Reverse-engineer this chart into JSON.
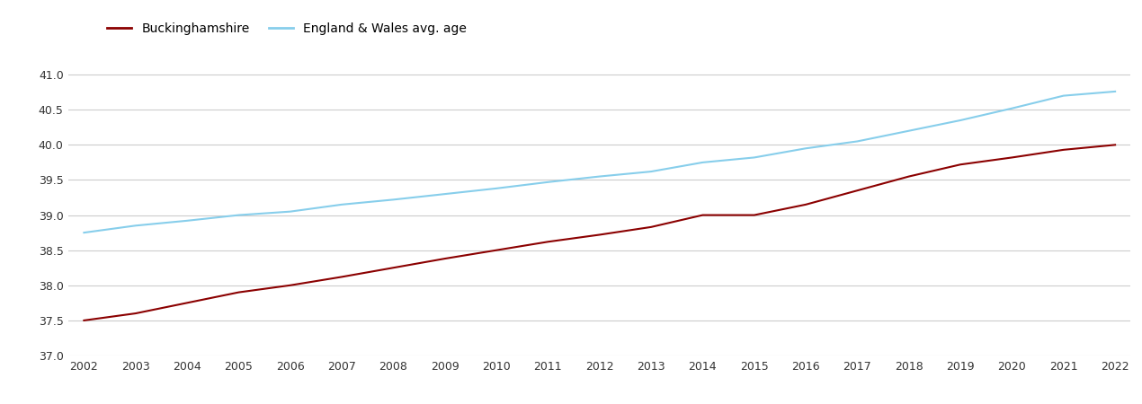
{
  "years": [
    2002,
    2003,
    2004,
    2005,
    2006,
    2007,
    2008,
    2009,
    2010,
    2011,
    2012,
    2013,
    2014,
    2015,
    2016,
    2017,
    2018,
    2019,
    2020,
    2021,
    2022
  ],
  "buckinghamshire": [
    37.5,
    37.6,
    37.75,
    37.9,
    38.0,
    38.12,
    38.25,
    38.38,
    38.5,
    38.62,
    38.72,
    38.83,
    39.0,
    39.0,
    39.15,
    39.35,
    39.55,
    39.72,
    39.82,
    39.93,
    40.0
  ],
  "england_wales": [
    38.75,
    38.85,
    38.92,
    39.0,
    39.05,
    39.15,
    39.22,
    39.3,
    39.38,
    39.47,
    39.55,
    39.62,
    39.75,
    39.82,
    39.95,
    40.05,
    40.2,
    40.35,
    40.52,
    40.7,
    40.76
  ],
  "bucks_color": "#8B0000",
  "ew_color": "#87CEEB",
  "bucks_label": "Buckinghamshire",
  "ew_label": "England & Wales avg. age",
  "ylim": [
    37.0,
    41.2
  ],
  "yticks": [
    37.0,
    37.5,
    38.0,
    38.5,
    39.0,
    39.5,
    40.0,
    40.5,
    41.0
  ],
  "background_color": "#ffffff",
  "grid_color": "#cccccc",
  "line_width": 1.5,
  "tick_fontsize": 9,
  "legend_fontsize": 10
}
